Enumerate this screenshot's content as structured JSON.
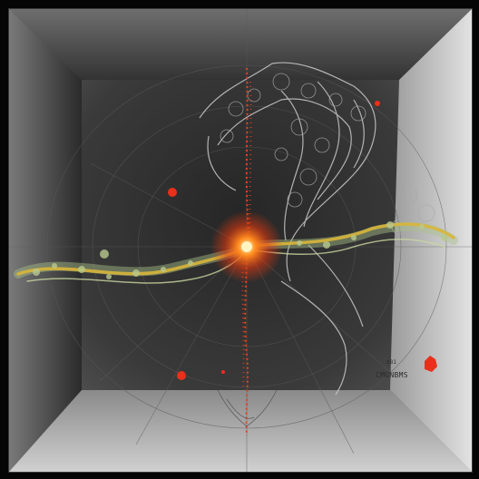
{
  "artwork": {
    "label_small": "$81",
    "label_main": "CMUNBMS"
  },
  "palette": {
    "background_dark": "#141414",
    "wall_light": "#d8d8d8",
    "core_glow": "#ff5a14",
    "strand_yellow": "#d8b63a",
    "strand_green": "#a8c08a",
    "mesh_gray": "#bdbdbd",
    "spark_red": "#e8301a"
  }
}
